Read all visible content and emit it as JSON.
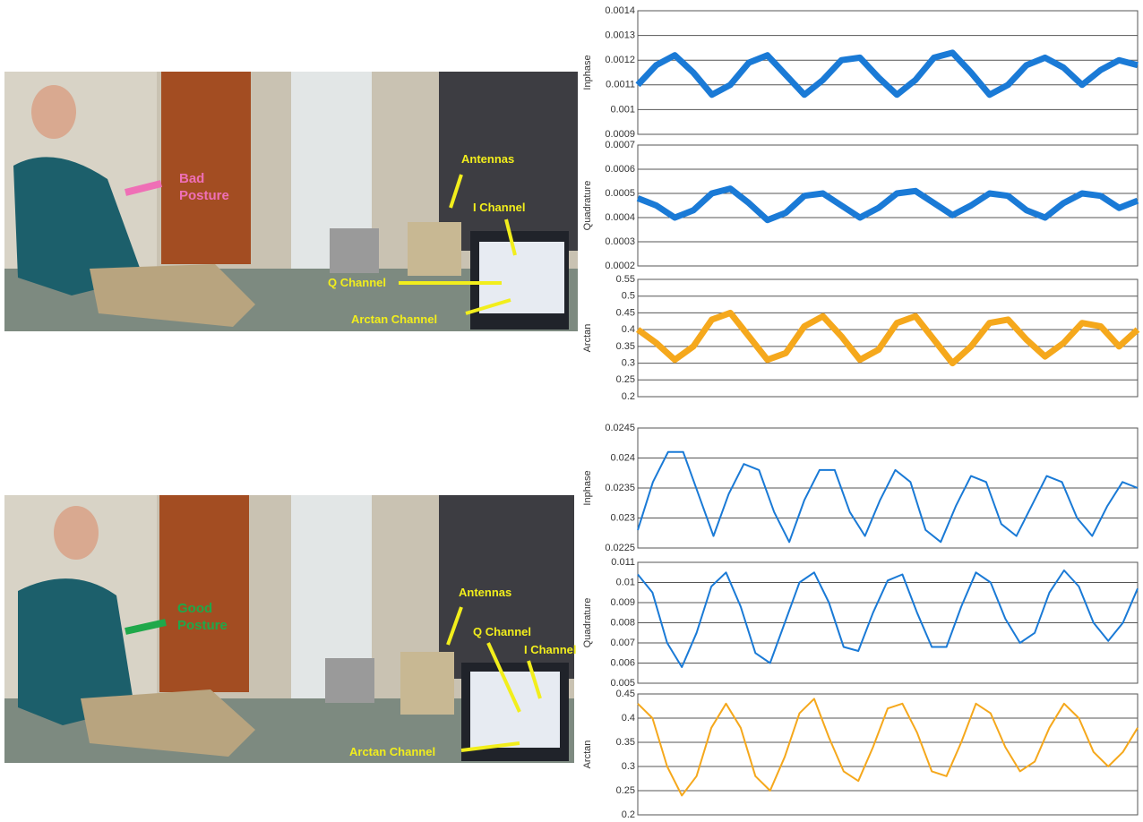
{
  "photos": [
    {
      "posture": "Bad Posture",
      "labels": [
        "Antennas",
        "I Channel",
        "Q Channel",
        "Arctan Channel"
      ]
    },
    {
      "posture": "Good Posture",
      "labels": [
        "Antennas",
        "Q Channel",
        "I Channel",
        "Arctan Channel"
      ]
    }
  ],
  "chart_data": [
    {
      "type": "line",
      "y_label": "Inphase",
      "color": "#1a7ad6",
      "ylim": [
        0.0009,
        0.0014
      ],
      "yticks": [
        0.0009,
        0.001,
        0.0011,
        0.0012,
        0.0013,
        0.0014
      ],
      "grid": true,
      "values": [
        0.0011,
        0.00118,
        0.00122,
        0.00115,
        0.00106,
        0.0011,
        0.00119,
        0.00122,
        0.00114,
        0.00106,
        0.00112,
        0.0012,
        0.00121,
        0.00113,
        0.00106,
        0.00112,
        0.00121,
        0.00123,
        0.00115,
        0.00106,
        0.0011,
        0.00118,
        0.00121,
        0.00117,
        0.0011,
        0.00116,
        0.0012,
        0.00118
      ]
    },
    {
      "type": "line",
      "y_label": "Quadrature",
      "color": "#1a7ad6",
      "ylim": [
        0.0002,
        0.0007
      ],
      "yticks": [
        0.0002,
        0.0003,
        0.0004,
        0.0005,
        0.0006,
        0.0007
      ],
      "grid": true,
      "values": [
        0.00048,
        0.00045,
        0.0004,
        0.00043,
        0.0005,
        0.00052,
        0.00046,
        0.00039,
        0.00042,
        0.00049,
        0.0005,
        0.00045,
        0.0004,
        0.00044,
        0.0005,
        0.00051,
        0.00046,
        0.00041,
        0.00045,
        0.0005,
        0.00049,
        0.00043,
        0.0004,
        0.00046,
        0.0005,
        0.00049,
        0.00044,
        0.00047
      ]
    },
    {
      "type": "line",
      "y_label": "Arctan",
      "color": "#f5a81c",
      "ylim": [
        0.2,
        0.55
      ],
      "yticks": [
        0.2,
        0.25,
        0.3,
        0.35,
        0.4,
        0.45,
        0.5,
        0.55
      ],
      "grid": true,
      "values": [
        0.4,
        0.36,
        0.31,
        0.35,
        0.43,
        0.45,
        0.38,
        0.31,
        0.33,
        0.41,
        0.44,
        0.38,
        0.31,
        0.34,
        0.42,
        0.44,
        0.37,
        0.3,
        0.35,
        0.42,
        0.43,
        0.37,
        0.32,
        0.36,
        0.42,
        0.41,
        0.35,
        0.4
      ]
    },
    {
      "type": "line",
      "y_label": "Inphase",
      "color": "#1a7ad6",
      "ylim": [
        0.0225,
        0.0245
      ],
      "yticks": [
        0.0225,
        0.023,
        0.0235,
        0.024,
        0.0245
      ],
      "grid": true,
      "values": [
        0.0228,
        0.0236,
        0.0241,
        0.0241,
        0.0234,
        0.0227,
        0.0234,
        0.0239,
        0.0238,
        0.0231,
        0.0226,
        0.0233,
        0.0238,
        0.0238,
        0.0231,
        0.0227,
        0.0233,
        0.0238,
        0.0236,
        0.0228,
        0.0226,
        0.0232,
        0.0237,
        0.0236,
        0.0229,
        0.0227,
        0.0232,
        0.0237,
        0.0236,
        0.023,
        0.0227,
        0.0232,
        0.0236,
        0.0235
      ]
    },
    {
      "type": "line",
      "y_label": "Quadrature",
      "color": "#1a7ad6",
      "ylim": [
        0.005,
        0.011
      ],
      "yticks": [
        0.005,
        0.006,
        0.007,
        0.008,
        0.009,
        0.01,
        0.011
      ],
      "grid": true,
      "values": [
        0.0104,
        0.0095,
        0.007,
        0.0058,
        0.0075,
        0.0098,
        0.0105,
        0.0088,
        0.0065,
        0.006,
        0.008,
        0.01,
        0.0105,
        0.009,
        0.0068,
        0.0066,
        0.0085,
        0.0101,
        0.0104,
        0.0085,
        0.0068,
        0.0068,
        0.0088,
        0.0105,
        0.01,
        0.0082,
        0.007,
        0.0075,
        0.0095,
        0.0106,
        0.0098,
        0.008,
        0.0071,
        0.008,
        0.0097
      ]
    },
    {
      "type": "line",
      "y_label": "Arctan",
      "color": "#f5a81c",
      "ylim": [
        0.2,
        0.45
      ],
      "yticks": [
        0.2,
        0.25,
        0.3,
        0.35,
        0.4,
        0.45
      ],
      "grid": true,
      "values": [
        0.43,
        0.4,
        0.3,
        0.24,
        0.28,
        0.38,
        0.43,
        0.38,
        0.28,
        0.25,
        0.32,
        0.41,
        0.44,
        0.36,
        0.29,
        0.27,
        0.34,
        0.42,
        0.43,
        0.37,
        0.29,
        0.28,
        0.35,
        0.43,
        0.41,
        0.34,
        0.29,
        0.31,
        0.38,
        0.43,
        0.4,
        0.33,
        0.3,
        0.33,
        0.38
      ]
    }
  ]
}
